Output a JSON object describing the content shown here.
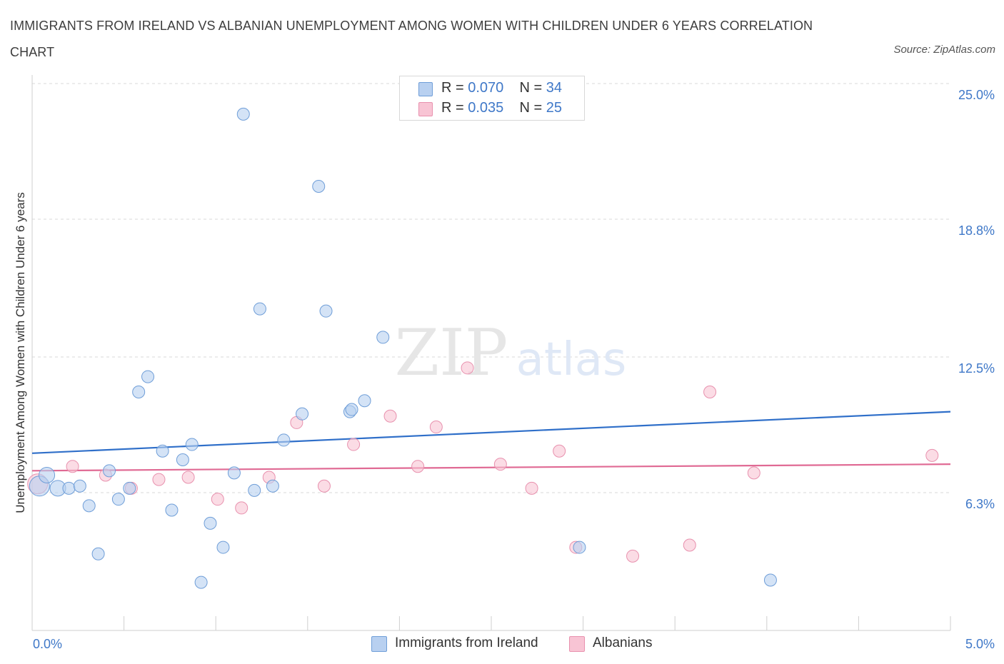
{
  "title": "IMMIGRANTS FROM IRELAND VS ALBANIAN UNEMPLOYMENT AMONG WOMEN WITH CHILDREN UNDER 6 YEARS CORRELATION CHART",
  "source": "Source: ZipAtlas.com",
  "watermark": {
    "zip": "ZIP",
    "atlas": "atlas"
  },
  "colors": {
    "ireland_fill": "#b8d0f0",
    "ireland_stroke": "#6f9ed8",
    "ireland_line": "#2f6fc9",
    "albanian_fill": "#f8c4d4",
    "albanian_stroke": "#e891ae",
    "albanian_line": "#e06a94",
    "tick_label": "#3f78c8",
    "grid": "#d9d9d9"
  },
  "legend": {
    "ireland": {
      "r_label": "R = ",
      "r_value": "0.070",
      "n_label": "N = ",
      "n_value": "34"
    },
    "albanian": {
      "r_label": "R = ",
      "r_value": "0.035",
      "n_label": "N = ",
      "n_value": "25"
    }
  },
  "chart_data": {
    "type": "scatter",
    "title": "IMMIGRANTS FROM IRELAND VS ALBANIAN UNEMPLOYMENT AMONG WOMEN WITH CHILDREN UNDER 6 YEARS CORRELATION CHART",
    "xlabel": "",
    "ylabel": "Unemployment Among Women with Children Under 6 years",
    "xlim": [
      0,
      5.0
    ],
    "ylim": [
      0,
      25.0
    ],
    "y_ticks": [
      6.3,
      12.5,
      18.8,
      25.0
    ],
    "y_tick_labels": [
      "6.3%",
      "12.5%",
      "18.8%",
      "25.0%"
    ],
    "x_tick_labels": [
      "0.0%",
      "5.0%"
    ],
    "grid": true,
    "legend_placement": "bottom-center",
    "series": [
      {
        "name": "Immigrants from Ireland",
        "points": [
          {
            "x": 0.04,
            "y": 6.6,
            "size": 3
          },
          {
            "x": 0.08,
            "y": 7.1,
            "size": 2
          },
          {
            "x": 0.14,
            "y": 6.5,
            "size": 2
          },
          {
            "x": 0.2,
            "y": 6.5,
            "size": 1
          },
          {
            "x": 0.26,
            "y": 6.6,
            "size": 1
          },
          {
            "x": 0.31,
            "y": 5.7,
            "size": 1
          },
          {
            "x": 0.36,
            "y": 3.5,
            "size": 1
          },
          {
            "x": 0.42,
            "y": 7.3,
            "size": 1
          },
          {
            "x": 0.47,
            "y": 6.0,
            "size": 1
          },
          {
            "x": 0.53,
            "y": 6.5,
            "size": 1
          },
          {
            "x": 0.58,
            "y": 10.9,
            "size": 1
          },
          {
            "x": 0.63,
            "y": 11.6,
            "size": 1
          },
          {
            "x": 0.71,
            "y": 8.2,
            "size": 1
          },
          {
            "x": 0.76,
            "y": 5.5,
            "size": 1
          },
          {
            "x": 0.82,
            "y": 7.8,
            "size": 1
          },
          {
            "x": 0.87,
            "y": 8.5,
            "size": 1
          },
          {
            "x": 0.92,
            "y": 2.2,
            "size": 1
          },
          {
            "x": 0.97,
            "y": 4.9,
            "size": 1
          },
          {
            "x": 1.04,
            "y": 3.8,
            "size": 1
          },
          {
            "x": 1.1,
            "y": 7.2,
            "size": 1
          },
          {
            "x": 1.15,
            "y": 23.6,
            "size": 1
          },
          {
            "x": 1.21,
            "y": 6.4,
            "size": 1
          },
          {
            "x": 1.24,
            "y": 14.7,
            "size": 1
          },
          {
            "x": 1.31,
            "y": 6.6,
            "size": 1
          },
          {
            "x": 1.37,
            "y": 8.7,
            "size": 1
          },
          {
            "x": 1.47,
            "y": 9.9,
            "size": 1
          },
          {
            "x": 1.56,
            "y": 20.3,
            "size": 1
          },
          {
            "x": 1.6,
            "y": 14.6,
            "size": 1
          },
          {
            "x": 1.73,
            "y": 10.0,
            "size": 1
          },
          {
            "x": 1.74,
            "y": 10.1,
            "size": 1
          },
          {
            "x": 1.81,
            "y": 10.5,
            "size": 1
          },
          {
            "x": 1.91,
            "y": 13.4,
            "size": 1
          },
          {
            "x": 2.98,
            "y": 3.8,
            "size": 1
          },
          {
            "x": 4.02,
            "y": 2.3,
            "size": 1
          }
        ],
        "trend": {
          "x": [
            0,
            5.0
          ],
          "y": [
            8.1,
            10.0
          ]
        }
      },
      {
        "name": "Albanians",
        "points": [
          {
            "x": 0.03,
            "y": 6.7,
            "size": 3
          },
          {
            "x": 0.22,
            "y": 7.5,
            "size": 1
          },
          {
            "x": 0.4,
            "y": 7.1,
            "size": 1
          },
          {
            "x": 0.54,
            "y": 6.5,
            "size": 1
          },
          {
            "x": 0.69,
            "y": 6.9,
            "size": 1
          },
          {
            "x": 0.85,
            "y": 7.0,
            "size": 1
          },
          {
            "x": 1.01,
            "y": 6.0,
            "size": 1
          },
          {
            "x": 1.14,
            "y": 5.6,
            "size": 1
          },
          {
            "x": 1.29,
            "y": 7.0,
            "size": 1
          },
          {
            "x": 1.44,
            "y": 9.5,
            "size": 1
          },
          {
            "x": 1.59,
            "y": 6.6,
            "size": 1
          },
          {
            "x": 1.75,
            "y": 8.5,
            "size": 1
          },
          {
            "x": 1.95,
            "y": 9.8,
            "size": 1
          },
          {
            "x": 2.1,
            "y": 7.5,
            "size": 1
          },
          {
            "x": 2.2,
            "y": 9.3,
            "size": 1
          },
          {
            "x": 2.37,
            "y": 12.0,
            "size": 1
          },
          {
            "x": 2.55,
            "y": 7.6,
            "size": 1
          },
          {
            "x": 2.72,
            "y": 6.5,
            "size": 1
          },
          {
            "x": 2.87,
            "y": 8.2,
            "size": 1
          },
          {
            "x": 2.96,
            "y": 3.8,
            "size": 1
          },
          {
            "x": 3.27,
            "y": 3.4,
            "size": 1
          },
          {
            "x": 3.58,
            "y": 3.9,
            "size": 1
          },
          {
            "x": 3.69,
            "y": 10.9,
            "size": 1
          },
          {
            "x": 3.93,
            "y": 7.2,
            "size": 1
          },
          {
            "x": 4.9,
            "y": 8.0,
            "size": 1
          }
        ],
        "trend": {
          "x": [
            0,
            5.0
          ],
          "y": [
            7.3,
            7.6
          ]
        }
      }
    ]
  }
}
